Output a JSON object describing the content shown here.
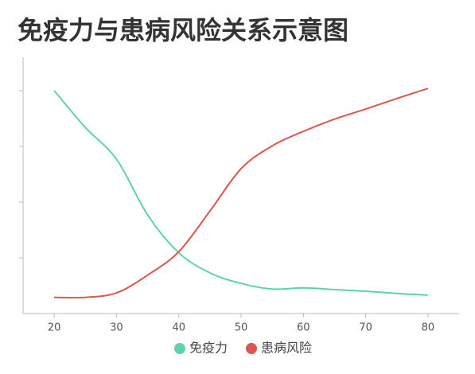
{
  "chart_data": {
    "type": "line",
    "title": "免疫力与患病风险关系示意图",
    "x": [
      20,
      25,
      30,
      35,
      40,
      45,
      50,
      55,
      60,
      65,
      70,
      75,
      80
    ],
    "series": [
      {
        "name": "免疫力",
        "color": "#5dd4a8",
        "values": [
          4.0,
          3.34,
          2.77,
          1.77,
          1.09,
          0.73,
          0.54,
          0.44,
          0.46,
          0.43,
          0.4,
          0.36,
          0.33
        ]
      },
      {
        "name": "患病风险",
        "color": "#d9574e",
        "values": [
          0.29,
          0.29,
          0.37,
          0.69,
          1.11,
          1.84,
          2.6,
          3.01,
          3.27,
          3.49,
          3.67,
          3.86,
          4.04
        ]
      }
    ],
    "xlim": [
      15,
      85
    ],
    "xticks": [
      20,
      30,
      40,
      50,
      60,
      70,
      80
    ],
    "ylim": [
      0,
      4.6
    ],
    "yticks": [
      1,
      2,
      3,
      4
    ]
  }
}
